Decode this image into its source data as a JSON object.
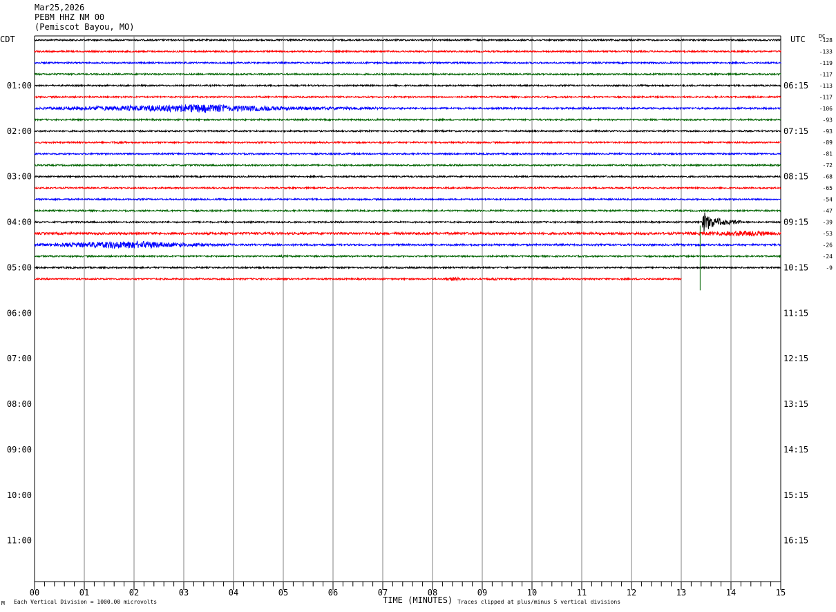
{
  "header": {
    "date": "Mar25,2026",
    "station": "PEBM HHZ NM 00",
    "location": "(Pemiscot Bayou, MO)"
  },
  "left_timezone": "CDT",
  "right_timezone": "UTC",
  "dc_label": "DC",
  "footer": {
    "scale_note": "Each Vertical Division = 1000.00 microvolts",
    "xlabel": "TIME (MINUTES)",
    "clip_note": "Traces clipped at plus/minus 5 vertical divisions",
    "corner_mark": "M"
  },
  "colors": {
    "trace_cycle": [
      "#000000",
      "#ff0000",
      "#0000ff",
      "#006400"
    ],
    "grid": "#808080"
  },
  "chart_data": {
    "type": "line",
    "title": "PEBM HHZ NM 00",
    "xlabel": "TIME (MINUTES)",
    "xlim": [
      0,
      15
    ],
    "x_ticks": [
      "00",
      "01",
      "02",
      "03",
      "04",
      "05",
      "06",
      "07",
      "08",
      "09",
      "10",
      "11",
      "12",
      "13",
      "14",
      "15"
    ],
    "rows_per_hour": 4,
    "left_hour_labels": [
      "01:00",
      "02:00",
      "03:00",
      "04:00",
      "05:00",
      "06:00",
      "07:00",
      "08:00",
      "09:00",
      "10:00",
      "11:00"
    ],
    "right_hour_labels": [
      "06:15",
      "07:15",
      "08:15",
      "09:15",
      "10:15",
      "11:15",
      "12:15",
      "13:15",
      "14:15",
      "15:15",
      "16:15"
    ],
    "dc_offsets": [
      -128,
      -133,
      -119,
      -117,
      -113,
      -117,
      -106,
      -93,
      -93,
      -89,
      -81,
      -72,
      -68,
      -65,
      -54,
      -47,
      -39,
      -53,
      -26,
      -24,
      -9
    ],
    "traces": [
      {
        "amp": 1,
        "end": 15,
        "events": []
      },
      {
        "amp": 1,
        "end": 15,
        "events": []
      },
      {
        "amp": 1,
        "end": 15,
        "events": []
      },
      {
        "amp": 1,
        "end": 15,
        "events": []
      },
      {
        "amp": 1,
        "end": 15,
        "events": []
      },
      {
        "amp": 1,
        "end": 15,
        "events": []
      },
      {
        "amp": 1.2,
        "end": 15,
        "events": [
          {
            "t0": 0.0,
            "t1": 7.0,
            "peak": 3.5,
            "gain": 5
          }
        ]
      },
      {
        "amp": 1,
        "end": 15,
        "events": []
      },
      {
        "amp": 1,
        "end": 15,
        "events": []
      },
      {
        "amp": 1,
        "end": 15,
        "events": [
          {
            "t0": 1.5,
            "t1": 1.9,
            "peak": 1.7,
            "gain": 2
          }
        ]
      },
      {
        "amp": 1,
        "end": 15,
        "events": []
      },
      {
        "amp": 1,
        "end": 15,
        "events": []
      },
      {
        "amp": 1,
        "end": 15,
        "events": []
      },
      {
        "amp": 1,
        "end": 15,
        "events": []
      },
      {
        "amp": 1,
        "end": 15,
        "events": []
      },
      {
        "amp": 1,
        "end": 15,
        "events": []
      },
      {
        "amp": 1,
        "end": 15,
        "events": [
          {
            "t0": 13.4,
            "t1": 14.2,
            "peak": 13.45,
            "gain": 15
          }
        ]
      },
      {
        "amp": 1.5,
        "end": 15,
        "events": [
          {
            "t0": 13.0,
            "t1": 15.0,
            "peak": 14.5,
            "gain": 3
          }
        ]
      },
      {
        "amp": 1.2,
        "end": 15,
        "events": [
          {
            "t0": 0.0,
            "t1": 4.0,
            "peak": 2.0,
            "gain": 5
          }
        ]
      },
      {
        "amp": 1,
        "end": 15,
        "events": [
          {
            "t0": 4.9,
            "t1": 5.1,
            "peak": 5.0,
            "gain": 3
          }
        ]
      },
      {
        "amp": 1,
        "end": 15,
        "events": []
      },
      {
        "amp": 1,
        "end": 13,
        "events": [
          {
            "t0": 8.2,
            "t1": 8.7,
            "peak": 8.45,
            "gain": 3
          },
          {
            "t0": 9.1,
            "t1": 9.4,
            "peak": 9.25,
            "gain": 2
          }
        ]
      }
    ],
    "spike": {
      "row": 19,
      "t": 13.38,
      "up_rows": 0.9,
      "down_rows": 1.0
    }
  }
}
